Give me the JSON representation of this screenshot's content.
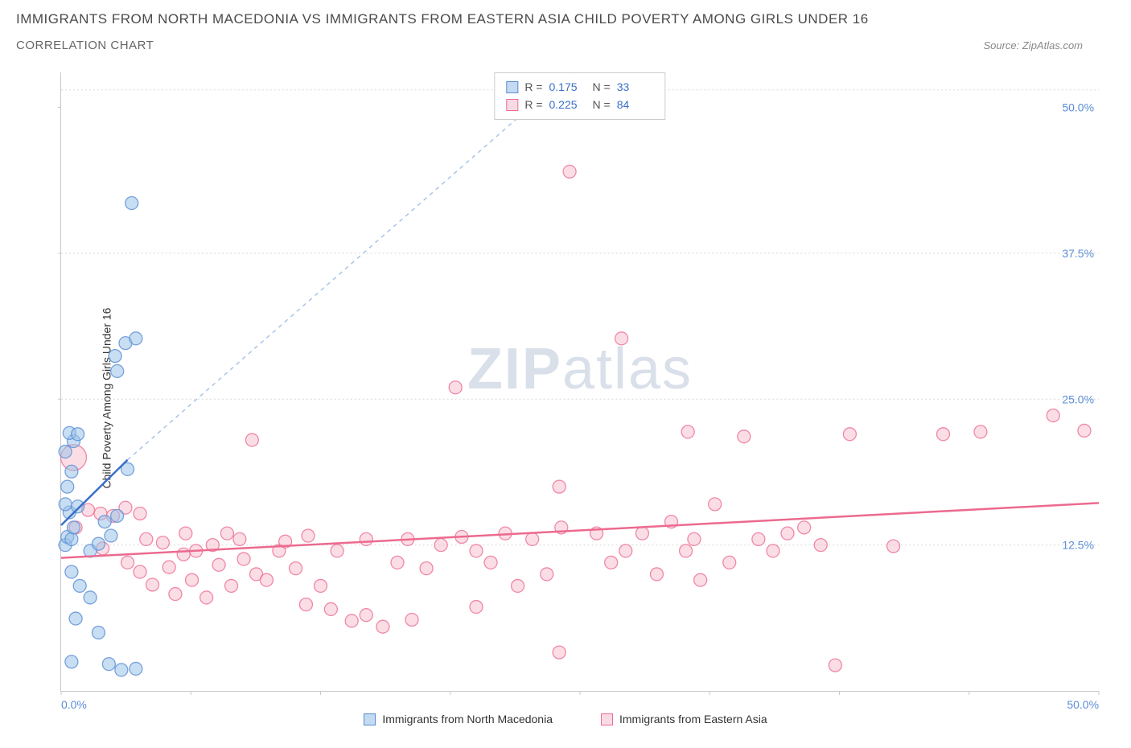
{
  "header": {
    "title": "IMMIGRANTS FROM NORTH MACEDONIA VS IMMIGRANTS FROM EASTERN ASIA CHILD POVERTY AMONG GIRLS UNDER 16",
    "subtitle": "CORRELATION CHART",
    "source": "Source: ZipAtlas.com"
  },
  "watermark": {
    "left": "ZIP",
    "right": "atlas"
  },
  "y_axis_label": "Child Poverty Among Girls Under 16",
  "chart": {
    "type": "scatter",
    "xlim": [
      0,
      50
    ],
    "ylim": [
      0,
      53
    ],
    "x_axis": {
      "left_label": "0.0%",
      "right_label": "50.0%",
      "tick_positions": [
        0,
        6.25,
        12.5,
        18.75,
        25,
        31.25,
        37.5,
        43.75,
        50
      ]
    },
    "y_axis": {
      "labels": [
        {
          "pos": 12.5,
          "text": "12.5%"
        },
        {
          "pos": 25.0,
          "text": "25.0%"
        },
        {
          "pos": 37.5,
          "text": "37.5%"
        },
        {
          "pos": 50.0,
          "text": "50.0%"
        }
      ],
      "grid_positions": [
        12.5,
        25.0,
        37.5,
        51.5
      ]
    },
    "background_color": "#ffffff",
    "grid_color": "#d8d8d8",
    "marker_radius": 8,
    "series": {
      "blue": {
        "label": "Immigrants from North Macedonia",
        "fill": "#9bc2e8",
        "stroke": "#5b8dd6",
        "R": "0.175",
        "N": "33",
        "trend_solid": {
          "x1": 0,
          "y1": 14.2,
          "x2": 3.2,
          "y2": 19.8
        },
        "trend_dash": {
          "x1": 3.2,
          "y1": 19.8,
          "x2": 24.5,
          "y2": 53
        },
        "points": [
          [
            0.2,
            12.5
          ],
          [
            0.3,
            13.2
          ],
          [
            0.5,
            13.0
          ],
          [
            0.6,
            14.0
          ],
          [
            0.4,
            15.3
          ],
          [
            0.2,
            16.0
          ],
          [
            0.8,
            15.8
          ],
          [
            0.3,
            17.5
          ],
          [
            0.5,
            18.8
          ],
          [
            0.2,
            20.5
          ],
          [
            0.6,
            21.4
          ],
          [
            0.4,
            22.1
          ],
          [
            0.8,
            22.0
          ],
          [
            0.5,
            10.2
          ],
          [
            0.9,
            9.0
          ],
          [
            1.4,
            8.0
          ],
          [
            0.7,
            6.2
          ],
          [
            1.8,
            5.0
          ],
          [
            2.3,
            2.3
          ],
          [
            0.5,
            2.5
          ],
          [
            2.9,
            1.8
          ],
          [
            3.6,
            1.9
          ],
          [
            1.4,
            12.0
          ],
          [
            1.8,
            12.6
          ],
          [
            2.4,
            13.3
          ],
          [
            2.1,
            14.5
          ],
          [
            2.7,
            15.0
          ],
          [
            3.2,
            19.0
          ],
          [
            2.6,
            28.7
          ],
          [
            3.1,
            29.8
          ],
          [
            3.6,
            30.2
          ],
          [
            2.7,
            27.4
          ],
          [
            3.4,
            41.8
          ]
        ]
      },
      "pink": {
        "label": "Immigrants from Eastern Asia",
        "fill": "#f7c2d0",
        "stroke": "#ec6d93",
        "R": "0.225",
        "N": "84",
        "trend": {
          "x1": 0,
          "y1": 11.4,
          "x2": 50,
          "y2": 16.1
        },
        "big_point": {
          "x": 0.6,
          "y": 20.0,
          "r": 16
        },
        "points": [
          [
            0.7,
            14.0
          ],
          [
            1.3,
            15.5
          ],
          [
            1.9,
            15.2
          ],
          [
            2.5,
            15.0
          ],
          [
            3.1,
            15.7
          ],
          [
            3.8,
            15.2
          ],
          [
            2.0,
            12.2
          ],
          [
            3.2,
            11.0
          ],
          [
            3.8,
            10.2
          ],
          [
            4.4,
            9.1
          ],
          [
            5.2,
            10.6
          ],
          [
            5.9,
            11.7
          ],
          [
            6.5,
            12.0
          ],
          [
            4.1,
            13.0
          ],
          [
            4.9,
            12.7
          ],
          [
            5.5,
            8.3
          ],
          [
            6.3,
            9.5
          ],
          [
            7.0,
            8.0
          ],
          [
            7.6,
            10.8
          ],
          [
            8.2,
            9.0
          ],
          [
            8.8,
            11.3
          ],
          [
            9.4,
            10.0
          ],
          [
            7.3,
            12.5
          ],
          [
            8.0,
            13.5
          ],
          [
            8.6,
            13.0
          ],
          [
            9.2,
            21.5
          ],
          [
            9.9,
            9.5
          ],
          [
            10.5,
            12.0
          ],
          [
            11.3,
            10.5
          ],
          [
            11.9,
            13.3
          ],
          [
            12.5,
            9.0
          ],
          [
            13.3,
            12.0
          ],
          [
            14.0,
            6.0
          ],
          [
            14.7,
            13.0
          ],
          [
            15.5,
            5.5
          ],
          [
            16.2,
            11.0
          ],
          [
            16.9,
            6.1
          ],
          [
            17.6,
            10.5
          ],
          [
            18.3,
            12.5
          ],
          [
            19.3,
            13.2
          ],
          [
            19.0,
            26.0
          ],
          [
            20.0,
            12.0
          ],
          [
            20.7,
            11.0
          ],
          [
            21.4,
            13.5
          ],
          [
            22.0,
            9.0
          ],
          [
            22.7,
            13.0
          ],
          [
            23.4,
            10.0
          ],
          [
            24.1,
            14.0
          ],
          [
            24.0,
            17.5
          ],
          [
            25.8,
            13.5
          ],
          [
            26.5,
            11.0
          ],
          [
            24.5,
            44.5
          ],
          [
            27.2,
            12.0
          ],
          [
            27.0,
            30.2
          ],
          [
            28.0,
            13.5
          ],
          [
            28.7,
            10.0
          ],
          [
            29.4,
            14.5
          ],
          [
            30.1,
            12.0
          ],
          [
            30.2,
            22.2
          ],
          [
            30.8,
            9.5
          ],
          [
            31.5,
            16.0
          ],
          [
            32.2,
            11.0
          ],
          [
            32.9,
            21.8
          ],
          [
            33.6,
            13.0
          ],
          [
            34.3,
            12.0
          ],
          [
            35.0,
            13.5
          ],
          [
            35.8,
            14.0
          ],
          [
            36.6,
            12.5
          ],
          [
            37.3,
            2.2
          ],
          [
            38.0,
            22.0
          ],
          [
            40.1,
            12.4
          ],
          [
            42.5,
            22.0
          ],
          [
            44.3,
            22.2
          ],
          [
            47.8,
            23.6
          ],
          [
            49.3,
            22.3
          ],
          [
            24.0,
            3.3
          ],
          [
            11.8,
            7.4
          ],
          [
            14.7,
            6.5
          ],
          [
            16.7,
            13.0
          ],
          [
            6.0,
            13.5
          ],
          [
            13.0,
            7.0
          ],
          [
            20.0,
            7.2
          ],
          [
            10.8,
            12.8
          ],
          [
            30.5,
            13.0
          ]
        ]
      }
    }
  },
  "stats_legend": {
    "r_label": "R =",
    "n_label": "N ="
  },
  "series_legend": {
    "blue_label": "Immigrants from North Macedonia",
    "pink_label": "Immigrants from Eastern Asia"
  }
}
